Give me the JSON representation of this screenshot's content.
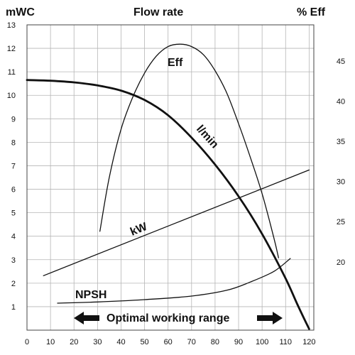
{
  "chart_data": {
    "type": "line",
    "title": "Flow rate",
    "y_left_label": "mWC",
    "y_right_label": "% Eff",
    "x_ticks": [
      "0",
      "10",
      "20",
      "30",
      "40",
      "50",
      "60",
      "70",
      "80",
      "90",
      "100",
      "110",
      "120"
    ],
    "y_left_ticks": [
      "1",
      "2",
      "3",
      "4",
      "5",
      "6",
      "7",
      "8",
      "9",
      "10",
      "11",
      "12",
      "13"
    ],
    "y_right_ticks": [
      "20",
      "25",
      "30",
      "35",
      "40",
      "45"
    ],
    "xlim": [
      0,
      122
    ],
    "ylim_left": [
      0,
      13
    ],
    "ylim_right": [
      11.5,
      49.5
    ],
    "grid": true,
    "series": [
      {
        "name": "l/min",
        "axis": "left",
        "points": [
          [
            0,
            10.65
          ],
          [
            10,
            10.62
          ],
          [
            20,
            10.55
          ],
          [
            30,
            10.42
          ],
          [
            40,
            10.2
          ],
          [
            50,
            9.8
          ],
          [
            60,
            9.15
          ],
          [
            70,
            8.2
          ],
          [
            80,
            7.05
          ],
          [
            90,
            5.7
          ],
          [
            100,
            4.1
          ],
          [
            110,
            2.2
          ],
          [
            115,
            1.1
          ],
          [
            120,
            0.05
          ]
        ]
      },
      {
        "name": "Eff",
        "axis": "right",
        "points": [
          [
            31,
            23.8
          ],
          [
            35,
            30.5
          ],
          [
            40,
            36.5
          ],
          [
            45,
            40.5
          ],
          [
            50,
            43.5
          ],
          [
            55,
            45.6
          ],
          [
            60,
            46.8
          ],
          [
            65,
            47.1
          ],
          [
            70,
            46.8
          ],
          [
            75,
            45.8
          ],
          [
            80,
            43.8
          ],
          [
            85,
            41
          ],
          [
            90,
            37.2
          ],
          [
            95,
            33
          ],
          [
            100,
            28.5
          ],
          [
            105,
            23
          ],
          [
            107,
            20.5
          ]
        ]
      },
      {
        "name": "kW",
        "axis": "left",
        "points": [
          [
            7,
            2.32
          ],
          [
            120,
            6.82
          ]
        ]
      },
      {
        "name": "NPSH",
        "axis": "left",
        "points": [
          [
            13,
            1.15
          ],
          [
            30,
            1.2
          ],
          [
            50,
            1.3
          ],
          [
            70,
            1.45
          ],
          [
            85,
            1.7
          ],
          [
            95,
            2.05
          ],
          [
            105,
            2.5
          ],
          [
            112,
            3.05
          ]
        ]
      }
    ],
    "annotations": [
      {
        "text": "Eff",
        "x": 65,
        "y": 11.3
      },
      {
        "text": "l/min",
        "x": 78,
        "y": 8.4
      },
      {
        "text": "kW",
        "x": 49,
        "y": 4.2
      },
      {
        "text": "NPSH",
        "x": 27,
        "y": 1.5
      },
      {
        "text": "Optimal working range",
        "x": 60,
        "y": 0.5
      }
    ]
  }
}
